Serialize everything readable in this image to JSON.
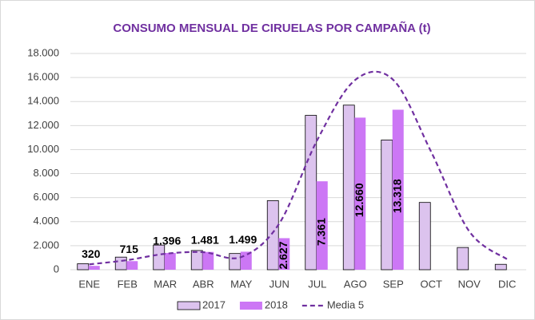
{
  "chart_data": {
    "type": "bar",
    "title": "CONSUMO MENSUAL DE CIRUELAS POR CAMPAÑA (t)",
    "categories": [
      "ENE",
      "FEB",
      "MAR",
      "ABR",
      "MAY",
      "JUN",
      "JUL",
      "AGO",
      "SEP",
      "OCT",
      "NOV",
      "DIC"
    ],
    "series": [
      {
        "name": "2017",
        "type": "bar",
        "color": "#dcc3ee",
        "values": [
          500,
          1050,
          2050,
          1600,
          1350,
          5750,
          12850,
          13700,
          10800,
          5600,
          1850,
          450
        ]
      },
      {
        "name": "2018",
        "type": "bar",
        "color": "#cc77f5",
        "values": [
          320,
          715,
          1396,
          1481,
          1499,
          2627,
          7361,
          12660,
          13318,
          null,
          null,
          null
        ],
        "value_labels": [
          "320",
          "715",
          "1.396",
          "1.481",
          "1.499",
          "2.627",
          "7.361",
          "12.660",
          "13.318",
          null,
          null,
          null
        ]
      },
      {
        "name": "Media 5",
        "type": "line",
        "color": "#7030a0",
        "values": [
          450,
          800,
          1330,
          1460,
          1060,
          3850,
          10800,
          15800,
          15800,
          9800,
          3200,
          860
        ]
      }
    ],
    "ylim": [
      0,
      18000
    ],
    "yticks": [
      0,
      {
        "value": 2000,
        "label": "2.000"
      },
      {
        "value": 4000,
        "label": "4.000"
      },
      {
        "value": 6000,
        "label": "6.000"
      },
      {
        "value": 8000,
        "label": "8.000"
      },
      {
        "value": 10000,
        "label": "10.000"
      },
      {
        "value": 12000,
        "label": "12.000"
      },
      {
        "value": 14000,
        "label": "14.000"
      },
      {
        "value": 16000,
        "label": "16.000"
      },
      {
        "value": 18000,
        "label": "18.000"
      }
    ],
    "grid": true,
    "legend": "bottom"
  }
}
